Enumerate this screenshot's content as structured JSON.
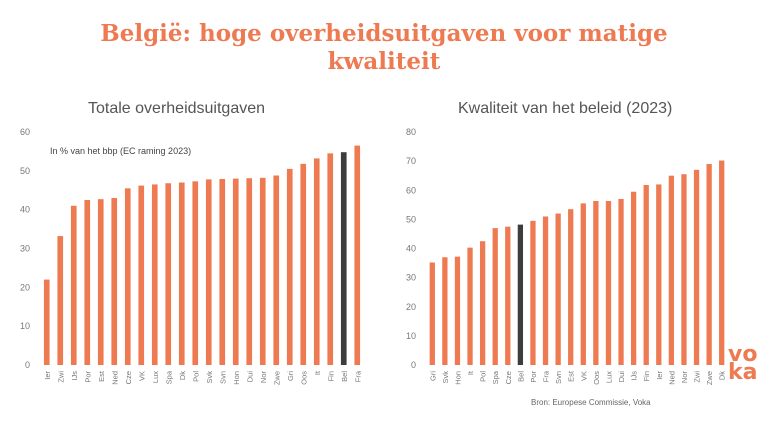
{
  "headline": {
    "line1": "België: hoge overheidsuitgaven voor matige",
    "line2": "kwaliteit"
  },
  "source": "Bron: Europese Commissie, Voka",
  "logo": {
    "line1": "vo",
    "line2": "ka"
  },
  "colors": {
    "accent": "#ee7a52",
    "highlight": "#3d3d3d",
    "headline": "#ee7a52"
  },
  "chart_data": [
    {
      "type": "bar",
      "title": "Totale overheidsuitgaven",
      "subtitle": "In % van het bbp (EC raming 2023)",
      "categories": [
        "Ier",
        "Zwi",
        "IJs",
        "Por",
        "Est",
        "Ned",
        "Cze",
        "VK",
        "Lux",
        "Spa",
        "Dk",
        "Pol",
        "Svk",
        "Svn",
        "Hon",
        "Dui",
        "Nor",
        "Zwe",
        "Gri",
        "Oos",
        "It",
        "Fin",
        "Bel",
        "Fra"
      ],
      "values": [
        22,
        33.2,
        41,
        42.5,
        42.7,
        43,
        45.5,
        46.2,
        46.5,
        46.8,
        47,
        47.3,
        47.8,
        47.9,
        48,
        48.1,
        48.2,
        48.8,
        50.5,
        51.8,
        53.2,
        54.5,
        54.8,
        56.5
      ],
      "highlight": "Bel",
      "ylim": [
        0,
        60
      ],
      "yticks": [
        0,
        10,
        20,
        30,
        40,
        50,
        60
      ],
      "grid": false
    },
    {
      "type": "bar",
      "title": "Kwaliteit van het beleid (2023)",
      "categories": [
        "Gri",
        "Svk",
        "Hon",
        "It",
        "Pol",
        "Spa",
        "Cze",
        "Bel",
        "Por",
        "Fra",
        "Svn",
        "Est",
        "VK",
        "Oos",
        "Lux",
        "Dui",
        "IJs",
        "Fin",
        "Ier",
        "Ned",
        "Nor",
        "Zwi",
        "Zwe",
        "Dk"
      ],
      "values": [
        35.2,
        37,
        37.2,
        40.3,
        42.5,
        47,
        47.5,
        48.2,
        49.5,
        51,
        52,
        53.5,
        55.5,
        56.3,
        56.3,
        57,
        59.5,
        61.8,
        62,
        65,
        65.5,
        67,
        69,
        70.2
      ],
      "highlight": "Bel",
      "ylim": [
        0,
        80
      ],
      "yticks": [
        0,
        10,
        20,
        30,
        40,
        50,
        60,
        70,
        80
      ],
      "grid": false
    }
  ]
}
